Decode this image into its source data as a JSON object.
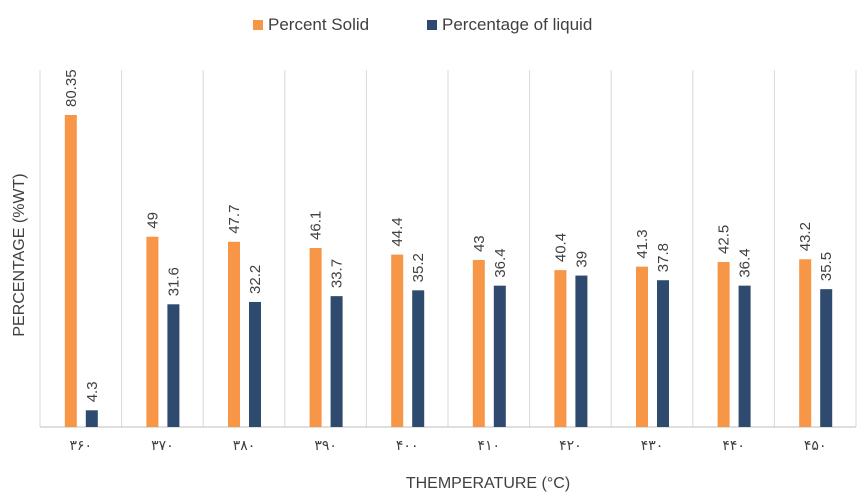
{
  "chart_data": {
    "type": "bar",
    "title": "",
    "xlabel": "THEMPERATURE (°C)",
    "ylabel": "PERCENTAGE (%WT)",
    "categories": [
      "۳۶۰",
      "۳۷۰",
      "۳۸۰",
      "۳۹۰",
      "۴۰۰",
      "۴۱۰",
      "۴۲۰",
      "۴۳۰",
      "۴۴۰",
      "۴۵۰"
    ],
    "series": [
      {
        "name": "Percent Solid",
        "color": "#F79646",
        "values": [
          80.35,
          49,
          47.7,
          46.1,
          44.4,
          43,
          40.4,
          41.3,
          42.5,
          43.2
        ],
        "labels": [
          "80.35",
          "49",
          "47.7",
          "46.1",
          "44.4",
          "43",
          "40.4",
          "41.3",
          "42.5",
          "43.2"
        ]
      },
      {
        "name": "Percentage of liquid",
        "color": "#2E4A6E",
        "values": [
          4.3,
          31.6,
          32.2,
          33.7,
          35.2,
          36.4,
          39,
          37.8,
          36.4,
          35.5
        ],
        "labels": [
          "4.3",
          "31.6",
          "32.2",
          "33.7",
          "35.2",
          "36.4",
          "39",
          "37.8",
          "36.4",
          "35.5"
        ]
      }
    ],
    "ylim": [
      0,
      80.35
    ],
    "grid": "vertical-category-separators",
    "legend_position": "top-center",
    "data_labels": "rotated-vertical"
  }
}
